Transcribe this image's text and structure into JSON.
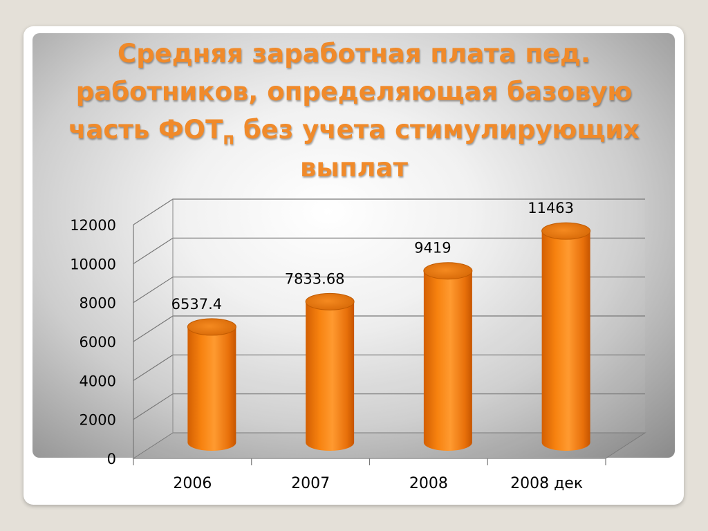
{
  "slide": {
    "title_main": "Средняя заработная плата пед. работников, определяющая базовую часть ФОТ",
    "title_sub": "п",
    "title_rest": " без учета стимулирующих выплат"
  },
  "chart_data": {
    "type": "bar",
    "title": "Средняя заработная плата пед. работников, определяющая базовую часть ФОТп без учета стимулирующих выплат",
    "categories": [
      "2006",
      "2007",
      "2008",
      "2008 дек"
    ],
    "values": [
      6537.4,
      7833.68,
      9419,
      11463
    ],
    "data_labels": [
      "6537.4",
      "7833.68",
      "9419",
      "11463"
    ],
    "y_ticks": [
      "0",
      "2000",
      "4000",
      "6000",
      "8000",
      "10000",
      "12000"
    ],
    "ylim": [
      0,
      12000
    ],
    "xlabel": "",
    "ylabel": "",
    "grid": true,
    "legend": "none",
    "style": "3d-cylinder",
    "bar_color": "#f7820f"
  }
}
